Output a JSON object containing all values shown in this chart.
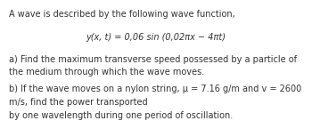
{
  "bg_color": "#ffffff",
  "text_color": "#333333",
  "line1": "A wave is described by the following wave function,",
  "equation": "y(x, t) = 0,06 sin (0,02πx − 4πt)",
  "part_a_line1": "a) Find the maximum transverse speed possessed by a particle of",
  "part_a_line2": "the medium through which the wave moves.",
  "part_b_line1": "b) If the wave moves on a nylon string, μ = 7.16 g/m and v = 2600",
  "part_b_line2": "m/s, find the power transported",
  "part_b_line3": "by one wavelength during one period of oscillation."
}
